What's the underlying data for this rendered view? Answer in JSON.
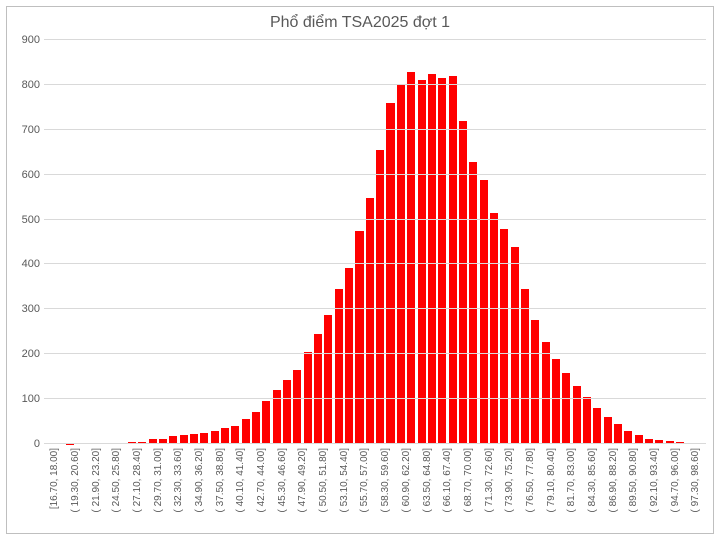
{
  "chart": {
    "type": "histogram",
    "title": "Phổ điểm TSA2025 đợt 1",
    "title_fontsize": 16,
    "title_color": "#595959",
    "background_color": "#ffffff",
    "border_color": "#bfbfbf",
    "grid_color": "#d9d9d9",
    "bar_color": "#ff0000",
    "bar_width_ratio": 0.78,
    "label_fontsize": 11,
    "xlabel_fontsize": 10,
    "label_color": "#595959",
    "ylim": [
      0,
      900
    ],
    "ytick_step": 100,
    "yticks": [
      0,
      100,
      200,
      300,
      400,
      500,
      600,
      700,
      800,
      900
    ],
    "categories": [
      "[16.70, 18.00]",
      "( 19.30, 20.60]",
      "( 21.90, 23.20]",
      "( 24.50, 25.80]",
      "( 27.10, 28.40]",
      "( 29.70, 31.00]",
      "( 32.30, 33.60]",
      "( 34.90, 36.20]",
      "( 37.50, 38.80]",
      "( 40.10, 41.40]",
      "( 42.70, 44.00]",
      "( 45.30, 46.60]",
      "( 47.90, 49.20]",
      "( 50.50, 51.80]",
      "( 53.10, 54.40]",
      "( 55.70, 57.00]",
      "( 58.30, 59.60]",
      "( 60.90, 62.20]",
      "( 63.50, 64.80]",
      "( 66.10, 67.40]",
      "( 68.70, 70.00]",
      "( 71.30, 72.60]",
      "( 73.90, 75.20]",
      "( 76.50, 77.80]",
      "( 79.10, 80.40]",
      "( 81.70, 83.00]",
      "( 84.30, 85.60]",
      "( 86.90, 88.20]",
      "( 89.50, 90.80]",
      "( 92.10, 93.40]",
      "( 94.70, 96.00]",
      "( 97.30, 98.60]"
    ],
    "values": [
      0,
      0,
      1,
      2,
      0,
      0,
      3,
      3,
      5,
      5,
      12,
      12,
      18,
      20,
      22,
      25,
      30,
      35,
      40,
      55,
      72,
      95,
      120,
      143,
      165,
      205,
      245,
      288,
      345,
      392,
      475,
      549,
      655,
      760,
      800,
      828,
      810,
      825,
      815,
      820,
      720,
      628,
      588,
      515,
      480,
      440,
      345,
      277,
      228,
      190,
      158,
      130,
      104,
      80,
      60,
      45,
      30,
      20,
      12,
      10,
      6,
      4,
      3,
      2
    ]
  }
}
